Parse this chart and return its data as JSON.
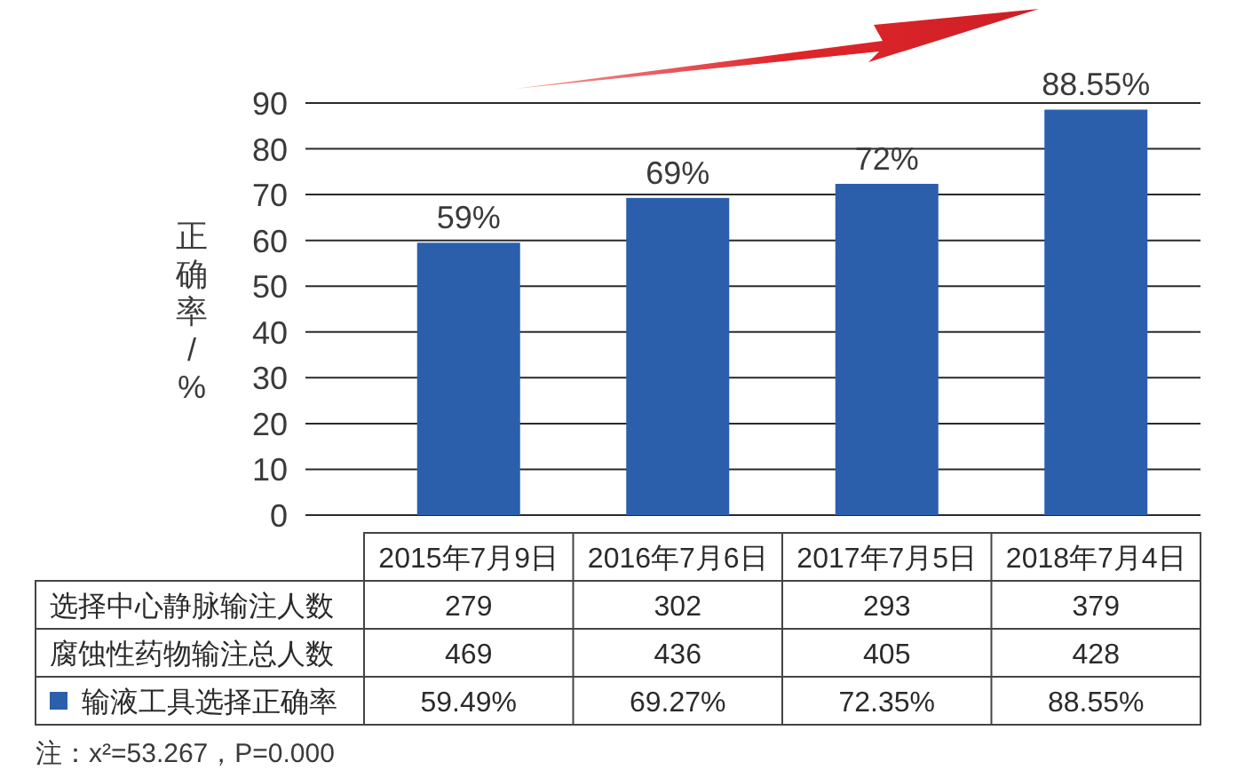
{
  "chart_data": {
    "type": "bar",
    "ylabel": "正确率/%",
    "categories": [
      "2015年7月9日",
      "2016年7月6日",
      "2017年7月5日",
      "2018年7月4日"
    ],
    "series": [
      {
        "name": "选择中心静脉输注人数",
        "values": [
          null,
          null,
          null,
          null
        ],
        "value_labels": [
          "279",
          "302",
          "293",
          "379"
        ]
      },
      {
        "name": "腐蚀性药物输注总人数",
        "values": [
          null,
          null,
          null,
          null
        ],
        "value_labels": [
          "469",
          "436",
          "405",
          "428"
        ]
      },
      {
        "name": "输液工具选择正确率",
        "color": "#2b5fac",
        "values": [
          59.49,
          69.27,
          72.35,
          88.55
        ],
        "value_labels": [
          "59.49%",
          "69.27%",
          "72.35%",
          "88.55%"
        ]
      }
    ],
    "ylim": [
      0,
      90
    ],
    "yticks": [
      0,
      10,
      20,
      30,
      40,
      50,
      60,
      70,
      80,
      90
    ],
    "grid": "y",
    "legend": "bottom",
    "annotations": [
      {
        "text": "59%",
        "x": "2015年7月9日",
        "y": 59.49
      },
      {
        "text": "69%",
        "x": "2016年7月6日",
        "y": 69.27
      },
      {
        "text": "72%",
        "x": "2017年7月5日",
        "y": 72.35
      },
      {
        "text": "88.55%",
        "x": "2018年7月4日",
        "y": 88.55
      },
      "注：x²=53.267，P=0.000"
    ]
  }
}
